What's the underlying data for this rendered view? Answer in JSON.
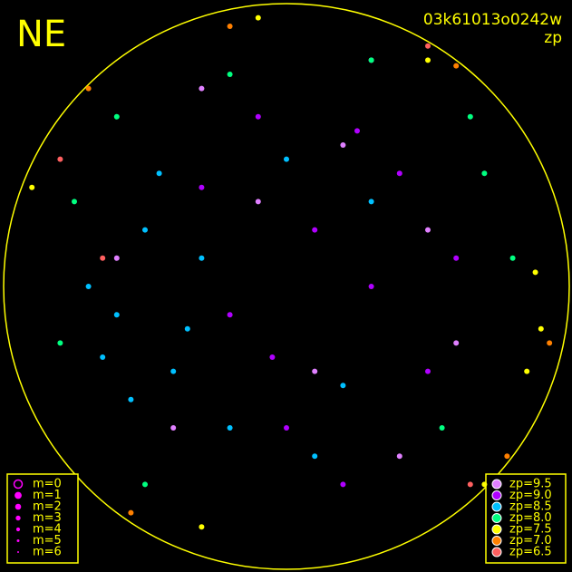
{
  "chart_data": {
    "type": "scatter",
    "title": "NE",
    "image_id": "03k61013o0242w",
    "subtitle": "zp",
    "xlim": [
      -1,
      1
    ],
    "ylim": [
      -1,
      1
    ],
    "magnitude_legend": [
      "m=0",
      "m=1",
      "m=2",
      "m=3",
      "m=4",
      "m=5",
      "m=6"
    ],
    "magnitude_color": "#ff00ff",
    "series": [
      {
        "name": "zp=9.5",
        "color": "#e080ff",
        "x": [
          -0.3,
          0.2,
          0.5,
          -0.6,
          0.1,
          0.4,
          -0.1,
          0.6,
          -0.4,
          0.3
        ],
        "y": [
          0.7,
          0.5,
          0.2,
          0.1,
          -0.3,
          -0.6,
          0.3,
          -0.2,
          -0.5,
          0.8
        ]
      },
      {
        "name": "zp=9.0",
        "color": "#b000ff",
        "x": [
          0.1,
          0.3,
          -0.2,
          0.4,
          0.0,
          -0.1,
          0.5,
          0.2,
          -0.3,
          0.6,
          0.25,
          -0.05
        ],
        "y": [
          0.2,
          0.0,
          -0.1,
          0.4,
          -0.5,
          0.6,
          -0.3,
          -0.7,
          0.35,
          0.1,
          0.55,
          -0.25
        ]
      },
      {
        "name": "zp=8.5",
        "color": "#00c0ff",
        "x": [
          -0.5,
          -0.6,
          -0.4,
          -0.7,
          -0.3,
          -0.2,
          -0.55,
          -0.45,
          0.1,
          0.3,
          -0.65,
          -0.35,
          0.0,
          0.2
        ],
        "y": [
          0.2,
          -0.1,
          -0.3,
          0.0,
          0.1,
          -0.5,
          -0.4,
          0.4,
          -0.6,
          0.3,
          -0.25,
          -0.15,
          0.45,
          -0.35
        ]
      },
      {
        "name": "zp=8.0",
        "color": "#00ff80",
        "x": [
          -0.75,
          -0.6,
          0.7,
          0.8,
          -0.2,
          0.55,
          -0.8,
          0.65,
          0.3,
          -0.5
        ],
        "y": [
          0.3,
          0.6,
          0.4,
          0.1,
          0.75,
          -0.5,
          -0.2,
          0.6,
          0.8,
          -0.7
        ]
      },
      {
        "name": "zp=7.5",
        "color": "#ffff00",
        "x": [
          0.85,
          -0.9,
          0.7,
          -0.1,
          0.88,
          -0.3,
          0.5,
          0.9
        ],
        "y": [
          -0.3,
          0.35,
          -0.7,
          0.95,
          0.05,
          -0.85,
          0.8,
          -0.15
        ]
      },
      {
        "name": "zp=7.0",
        "color": "#ff8000",
        "x": [
          -0.7,
          0.6,
          -0.55,
          0.93,
          -0.2,
          0.78
        ],
        "y": [
          0.7,
          0.78,
          -0.8,
          -0.2,
          0.92,
          -0.6
        ]
      },
      {
        "name": "zp=6.5",
        "color": "#ff6060",
        "x": [
          -0.65,
          0.65,
          -0.8,
          0.5
        ],
        "y": [
          0.1,
          -0.7,
          0.45,
          0.85
        ]
      }
    ]
  }
}
